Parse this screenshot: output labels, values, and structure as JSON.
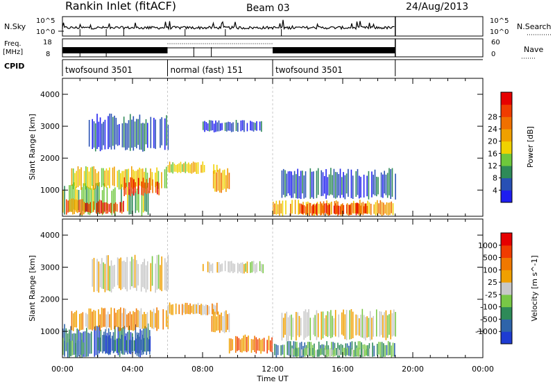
{
  "header": {
    "station": "Rankin Inlet (fitACF)",
    "beam": "Beam 03",
    "date": "24/Aug/2013"
  },
  "top_panels": {
    "nsky_label": "N.Sky",
    "nsearch_label": "N.Search",
    "log_ticks": [
      "10^5",
      "10^0"
    ],
    "freq_label": "Freq.",
    "freq_unit": "[MHz]",
    "freq_ticks": [
      "18",
      "8"
    ],
    "nave_label": "Nave",
    "nave_ticks": [
      "60",
      "0"
    ],
    "cpid_label": "CPID",
    "cpid_segments": [
      {
        "label": "twofsound 3501",
        "start": 0,
        "end": 6
      },
      {
        "label": "normal (fast) 151",
        "start": 6,
        "end": 12
      },
      {
        "label": "twofsound 3501",
        "start": 12,
        "end": 19
      }
    ]
  },
  "chart_data": [
    {
      "type": "heatmap",
      "title": "",
      "xlabel": "Time UT",
      "ylabel": "Slant Range [km]",
      "xlim": [
        0,
        24
      ],
      "ylim": [
        180,
        4500
      ],
      "x_ticks": [
        "00:00",
        "04:00",
        "08:00",
        "12:00",
        "16:00",
        "20:00",
        "00:00"
      ],
      "y_ticks": [
        1000,
        2000,
        3000,
        4000
      ],
      "colorbar": {
        "label": "Power [dB]",
        "ticks": [
          "4",
          "8",
          "12",
          "16",
          "20",
          "24",
          "28"
        ],
        "colors": [
          "#1e1ef0",
          "#2850b4",
          "#2e8a58",
          "#6ec83c",
          "#f0d200",
          "#f0a000",
          "#f07000",
          "#f03c00",
          "#e60000"
        ]
      },
      "data_end_hour": 19,
      "series": [
        {
          "name": "band",
          "t0": 0.0,
          "t1": 5.0,
          "r0": 180,
          "r1": 1250,
          "level": 3
        },
        {
          "name": "band",
          "t0": 0.5,
          "t1": 6.0,
          "r0": 1000,
          "r1": 1750,
          "level": 4
        },
        {
          "name": "band",
          "t0": 6.0,
          "t1": 8.8,
          "r0": 1500,
          "r1": 1900,
          "level": 4
        },
        {
          "name": "band",
          "t0": 8.5,
          "t1": 9.5,
          "r0": 900,
          "r1": 1700,
          "level": 5
        },
        {
          "name": "band",
          "t0": 12.0,
          "t1": 19.0,
          "r0": 180,
          "r1": 700,
          "level": 5
        },
        {
          "name": "band",
          "t0": 12.5,
          "t1": 19.0,
          "r0": 700,
          "r1": 1700,
          "level": 1
        },
        {
          "name": "band",
          "t0": 1.5,
          "t1": 6.0,
          "r0": 2200,
          "r1": 3400,
          "level": 1
        },
        {
          "name": "band",
          "t0": 8.0,
          "t1": 11.5,
          "r0": 2800,
          "r1": 3200,
          "level": 1
        },
        {
          "name": "peak",
          "t0": 1.2,
          "t1": 3.5,
          "r0": 250,
          "r1": 700,
          "level": 7
        },
        {
          "name": "peak",
          "t0": 3.5,
          "t1": 5.5,
          "r0": 800,
          "r1": 1400,
          "level": 7
        },
        {
          "name": "peak",
          "t0": 13.5,
          "t1": 17.5,
          "r0": 200,
          "r1": 600,
          "level": 7
        },
        {
          "name": "peak",
          "t0": 0.2,
          "t1": 1.2,
          "r0": 200,
          "r1": 800,
          "level": 6
        }
      ]
    },
    {
      "type": "heatmap",
      "title": "",
      "xlabel": "Time UT",
      "ylabel": "Slant Range [km]",
      "xlim": [
        0,
        24
      ],
      "ylim": [
        180,
        4500
      ],
      "x_ticks": [
        "00:00",
        "04:00",
        "08:00",
        "12:00",
        "16:00",
        "20:00",
        "00:00"
      ],
      "y_ticks": [
        1000,
        2000,
        3000,
        4000
      ],
      "colorbar": {
        "label": "Velocity [m s^-1]",
        "ticks": [
          "1000",
          "500",
          "100",
          "25",
          "-25",
          "-100",
          "-500",
          "-1000"
        ],
        "colors": [
          "#1e3cd2",
          "#2e64aa",
          "#2e8a58",
          "#78c846",
          "#c8c8c8",
          "#f0a000",
          "#f07800",
          "#f03c00",
          "#e60000"
        ]
      },
      "data_end_hour": 19,
      "series": [
        {
          "name": "band",
          "t0": 0.0,
          "t1": 5.0,
          "r0": 180,
          "r1": 1250,
          "level": 1
        },
        {
          "name": "band",
          "t0": 0.5,
          "t1": 6.0,
          "r0": 1000,
          "r1": 1750,
          "level": 5
        },
        {
          "name": "band",
          "t0": 6.0,
          "t1": 8.8,
          "r0": 1500,
          "r1": 1900,
          "level": 5
        },
        {
          "name": "band",
          "t0": 8.5,
          "t1": 9.5,
          "r0": 900,
          "r1": 1700,
          "level": 5
        },
        {
          "name": "band",
          "t0": 12.0,
          "t1": 19.0,
          "r0": 180,
          "r1": 700,
          "level": 2
        },
        {
          "name": "band",
          "t0": 12.5,
          "t1": 19.0,
          "r0": 700,
          "r1": 1700,
          "level": 4
        },
        {
          "name": "band",
          "t0": 1.5,
          "t1": 6.0,
          "r0": 2200,
          "r1": 3400,
          "level": 4
        },
        {
          "name": "band",
          "t0": 8.0,
          "t1": 11.5,
          "r0": 2800,
          "r1": 3200,
          "level": 4
        },
        {
          "name": "peak",
          "t0": 2.0,
          "t1": 5.0,
          "r0": 300,
          "r1": 900,
          "level": 1
        },
        {
          "name": "peak",
          "t0": 9.5,
          "t1": 12.0,
          "r0": 300,
          "r1": 900,
          "level": 6
        },
        {
          "name": "peak",
          "t0": 13.0,
          "t1": 17.5,
          "r0": 200,
          "r1": 500,
          "level": 3
        },
        {
          "name": "peak",
          "t0": 0.0,
          "t1": 1.2,
          "r0": 180,
          "r1": 800,
          "level": 2
        }
      ]
    }
  ]
}
